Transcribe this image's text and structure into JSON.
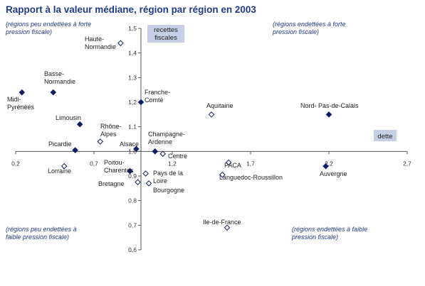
{
  "chart_data": {
    "type": "scatter",
    "title": "Rapport à la valeur médiane, région par région en 2003",
    "xlabel": "dette",
    "ylabel": [
      "recettes",
      "fiscales"
    ],
    "xlim": [
      0.2,
      2.7
    ],
    "ylim": [
      0.6,
      1.5
    ],
    "x_ticks": [
      "0,2",
      "0,7",
      "1,2",
      "1,7",
      "2,2",
      "2,7"
    ],
    "y_ticks": [
      "0,6",
      "0,7",
      "0,8",
      "0,9",
      "1,0",
      "1,1",
      "1,2",
      "1,3",
      "1,4",
      "1,5"
    ],
    "quadrant_notes": {
      "top_left": [
        "(régions peu endettées à forte",
        "pression fiscale)"
      ],
      "top_right": [
        "(régions  endettées à forte",
        "pression fiscale)"
      ],
      "bottom_left": [
        "(régions peu endettées à",
        "faible pression fiscale)"
      ],
      "bottom_right": [
        "(régions  endettées à faible",
        "pression fiscale)"
      ]
    },
    "points": [
      {
        "name": "Midi-Pyrénées",
        "label_lines": [
          "Midi-",
          "Pyrénéés"
        ],
        "x": 0.24,
        "y": 1.24,
        "filled": true
      },
      {
        "name": "Basse-Normandie",
        "label_lines": [
          "Basse-",
          "Normandie"
        ],
        "x": 0.44,
        "y": 1.24,
        "filled": true
      },
      {
        "name": "Limousin",
        "label_lines": [
          "Limousin"
        ],
        "x": 0.61,
        "y": 1.11,
        "filled": true
      },
      {
        "name": "Picardie",
        "label_lines": [
          "Picardie"
        ],
        "x": 0.58,
        "y": 1.005,
        "filled": true
      },
      {
        "name": "Lorraine",
        "label_lines": [
          "Lorraine"
        ],
        "x": 0.51,
        "y": 0.94,
        "filled": false
      },
      {
        "name": "Haute-Normandie",
        "label_lines": [
          "Haute-",
          "Normandie"
        ],
        "x": 0.87,
        "y": 1.44,
        "filled": false
      },
      {
        "name": "Rhône-Alpes",
        "label_lines": [
          "Rhône-",
          "Alpes"
        ],
        "x": 0.74,
        "y": 1.04,
        "filled": false
      },
      {
        "name": "Franche-Comté",
        "label_lines": [
          "Franche-",
          "Comté"
        ],
        "x": 1.0,
        "y": 1.2,
        "filled": true
      },
      {
        "name": "Alsace",
        "label_lines": [
          "Alsace"
        ],
        "x": 0.97,
        "y": 1.01,
        "filled": true
      },
      {
        "name": "Champagne-Ardenne",
        "label_lines": [
          "Champagne-",
          "Ardenne"
        ],
        "x": 1.09,
        "y": 1.0,
        "filled": true
      },
      {
        "name": "Centre",
        "label_lines": [
          "Centre"
        ],
        "x": 1.14,
        "y": 0.99,
        "filled": false
      },
      {
        "name": "Poitou-Charentes",
        "label_lines": [
          "Poitou-",
          "Charentes"
        ],
        "x": 0.93,
        "y": 0.92,
        "filled": true
      },
      {
        "name": "Pays de la Loire",
        "label_lines": [
          "Pays de la",
          "Loire"
        ],
        "x": 1.03,
        "y": 0.91,
        "filled": false
      },
      {
        "name": "Bretagne",
        "label_lines": [
          "Bretagne"
        ],
        "x": 0.98,
        "y": 0.875,
        "filled": false
      },
      {
        "name": "Bourgogne",
        "label_lines": [
          "Bourgogne"
        ],
        "x": 1.05,
        "y": 0.87,
        "filled": false
      },
      {
        "name": "Aquitaine",
        "label_lines": [
          "Aquitaine"
        ],
        "x": 1.45,
        "y": 1.15,
        "filled": false
      },
      {
        "name": "PACA",
        "label_lines": [
          "PACA"
        ],
        "x": 1.56,
        "y": 0.955,
        "filled": false
      },
      {
        "name": "Languedoc-Roussillon",
        "label_lines": [
          "Languedoc-Roussillon"
        ],
        "x": 1.52,
        "y": 0.905,
        "filled": false
      },
      {
        "name": "Ile-de-France",
        "label_lines": [
          "Ile-de-France"
        ],
        "x": 1.55,
        "y": 0.69,
        "filled": false
      },
      {
        "name": "Nord-Pas-de-Calais",
        "label_lines": [
          "Nord- Pas-de-Calais"
        ],
        "x": 2.2,
        "y": 1.15,
        "filled": true
      },
      {
        "name": "Auvergne",
        "label_lines": [
          "Auvergne"
        ],
        "x": 2.18,
        "y": 0.94,
        "filled": true
      }
    ]
  }
}
